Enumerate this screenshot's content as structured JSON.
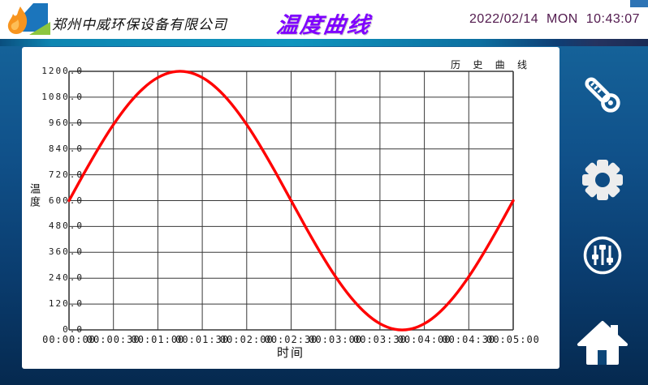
{
  "header": {
    "company": "郑州中威环保设备有限公司",
    "title": "温度曲线",
    "datetime": "2022/02/14  MON  10:43:07"
  },
  "sidebar": {
    "buttons": [
      {
        "name": "temperature-curve",
        "icon": "thermometer-icon"
      },
      {
        "name": "settings",
        "icon": "gear-icon"
      },
      {
        "name": "parameters",
        "icon": "sliders-icon"
      },
      {
        "name": "home",
        "icon": "home-icon"
      }
    ]
  },
  "chart_data": {
    "type": "line",
    "title": "历 史 曲 线",
    "ylabel": "温度",
    "xlabel": "时间",
    "ylim": [
      0,
      1200
    ],
    "x_range_seconds": [
      0,
      300
    ],
    "grid": true,
    "legend_position": "top-right",
    "y_ticks": [
      "1200.0",
      "1080.0",
      "960.0",
      "840.0",
      "720.0",
      "600.0",
      "480.0",
      "360.0",
      "240.0",
      "120.0",
      "0.0"
    ],
    "x_ticks": [
      "00:00:00",
      "00:00:30",
      "00:01:00",
      "00:01:30",
      "00:02:00",
      "00:02:30",
      "00:03:00",
      "00:03:30",
      "00:04:00",
      "00:04:30",
      "00:05:00"
    ],
    "series": [
      {
        "name": "温度",
        "color": "#FF0000",
        "x_seconds": [
          0,
          10,
          20,
          30,
          40,
          50,
          60,
          70,
          80,
          90,
          100,
          110,
          120,
          130,
          140,
          150,
          160,
          170,
          180,
          190,
          200,
          210,
          220,
          230,
          240,
          250,
          260,
          270,
          280,
          290,
          300
        ],
        "values": [
          600,
          725,
          844,
          953,
          1046,
          1120,
          1171,
          1197,
          1197,
          1171,
          1120,
          1046,
          953,
          844,
          725,
          600,
          475,
          356,
          247,
          154,
          80,
          29,
          3,
          3,
          29,
          80,
          154,
          247,
          356,
          475,
          600
        ]
      }
    ]
  },
  "colors": {
    "title": "#7F00FF",
    "datetime": "#521A4E",
    "band_teal": "#1095BE",
    "background_top": "#17699F",
    "background_bottom": "#05294F",
    "panel": "#FFFFFF",
    "curve": "#FF0000",
    "grid": "#383838"
  }
}
